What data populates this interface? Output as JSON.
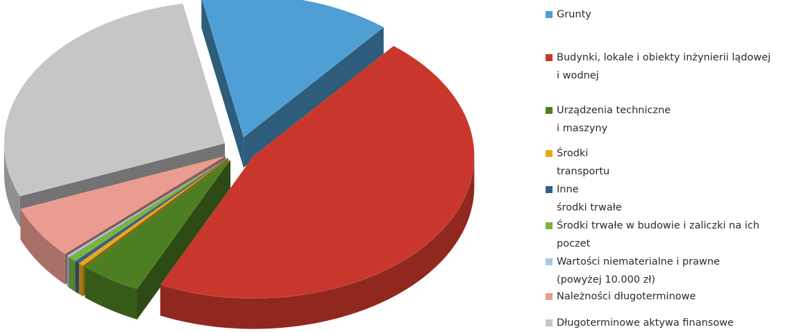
{
  "chart_data": {
    "type": "pie",
    "style": "3d-exploded",
    "categories": [
      "Grunty",
      "Budynki, lokale i obiekty inżynierii lądowej\ni wodnej",
      "Urządzenia techniczne\ni maszyny",
      "Środki\ntransportu",
      "Inne\nśrodki trwałe",
      "Środki trwałe w budowie i zaliczki na ich\npoczet",
      "Wartości niematerialne i prawne\n(powyżej 10.000 zł)",
      "Należności długoterminowe",
      "Długoterminowe aktywa finansowe"
    ],
    "values": [
      14.0,
      46.0,
      4.5,
      0.4,
      0.3,
      0.6,
      0.2,
      6.0,
      28.0
    ],
    "colors": [
      "#4f9fd4",
      "#c9372c",
      "#4d7f22",
      "#e7a91b",
      "#2f5f8f",
      "#7db33a",
      "#a8c8e4",
      "#eb9c90",
      "#c6c6c6"
    ],
    "legend_position": "right"
  }
}
